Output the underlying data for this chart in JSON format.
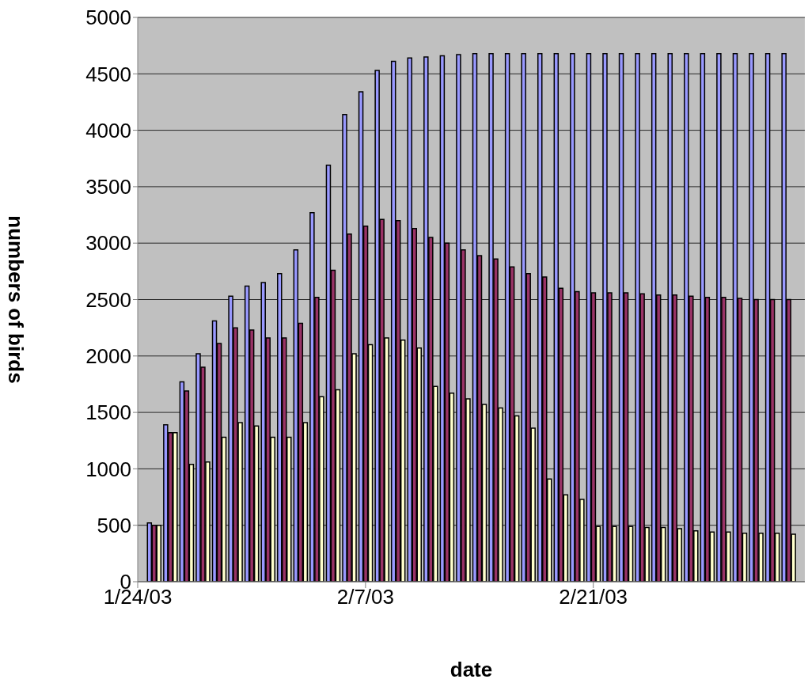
{
  "chart_data": {
    "type": "bar",
    "xlabel": "date",
    "ylabel": "numbers of birds",
    "x": [
      "2003-01-25",
      "2003-01-26",
      "2003-01-27",
      "2003-01-28",
      "2003-01-29",
      "2003-01-30",
      "2003-01-31",
      "2003-02-01",
      "2003-02-02",
      "2003-02-03",
      "2003-02-04",
      "2003-02-05",
      "2003-02-06",
      "2003-02-07",
      "2003-02-08",
      "2003-02-09",
      "2003-02-10",
      "2003-02-11",
      "2003-02-12",
      "2003-02-13",
      "2003-02-14",
      "2003-02-15",
      "2003-02-16",
      "2003-02-17",
      "2003-02-18",
      "2003-02-19",
      "2003-02-20",
      "2003-02-21",
      "2003-02-22",
      "2003-02-23",
      "2003-02-24",
      "2003-02-25",
      "2003-02-26",
      "2003-02-27",
      "2003-02-28",
      "2003-03-01",
      "2003-03-02",
      "2003-03-03",
      "2003-03-04",
      "2003-03-05"
    ],
    "series": [
      {
        "color": "#9999ff",
        "values": [
          520,
          1390,
          1770,
          2020,
          2310,
          2530,
          2620,
          2650,
          2730,
          2940,
          3270,
          3690,
          4140,
          4340,
          4530,
          4610,
          4640,
          4650,
          4660,
          4670,
          4680,
          4680,
          4680,
          4680,
          4680,
          4680,
          4680,
          4680,
          4680,
          4680,
          4680,
          4680,
          4680,
          4680,
          4680,
          4680,
          4680,
          4680,
          4680,
          4680
        ]
      },
      {
        "color": "#993366",
        "values": [
          500,
          1320,
          1690,
          1900,
          2110,
          2250,
          2230,
          2160,
          2160,
          2290,
          2520,
          2760,
          3080,
          3150,
          3210,
          3200,
          3130,
          3050,
          3000,
          2940,
          2890,
          2860,
          2790,
          2730,
          2700,
          2600,
          2570,
          2560,
          2560,
          2560,
          2550,
          2540,
          2540,
          2530,
          2520,
          2520,
          2510,
          2500,
          2500,
          2500
        ]
      },
      {
        "color": "#ffffcc",
        "values": [
          500,
          1320,
          1040,
          1060,
          1280,
          1410,
          1380,
          1280,
          1280,
          1410,
          1640,
          1700,
          2020,
          2100,
          2160,
          2140,
          2070,
          1730,
          1670,
          1620,
          1570,
          1540,
          1470,
          1360,
          910,
          770,
          730,
          490,
          490,
          490,
          480,
          480,
          470,
          450,
          440,
          440,
          430,
          430,
          430,
          420
        ]
      }
    ],
    "xlim": [
      "2003-01-24",
      "2003-03-06"
    ],
    "xticks": [
      {
        "value": "2003-01-24",
        "label": "1/24/03"
      },
      {
        "value": "2003-02-07",
        "label": "2/7/03"
      },
      {
        "value": "2003-02-21",
        "label": "2/21/03"
      }
    ],
    "ylim": [
      0,
      5000
    ],
    "yticks": [
      0,
      500,
      1000,
      1500,
      2000,
      2500,
      3000,
      3500,
      4000,
      4500,
      5000
    ],
    "grid": "y"
  }
}
